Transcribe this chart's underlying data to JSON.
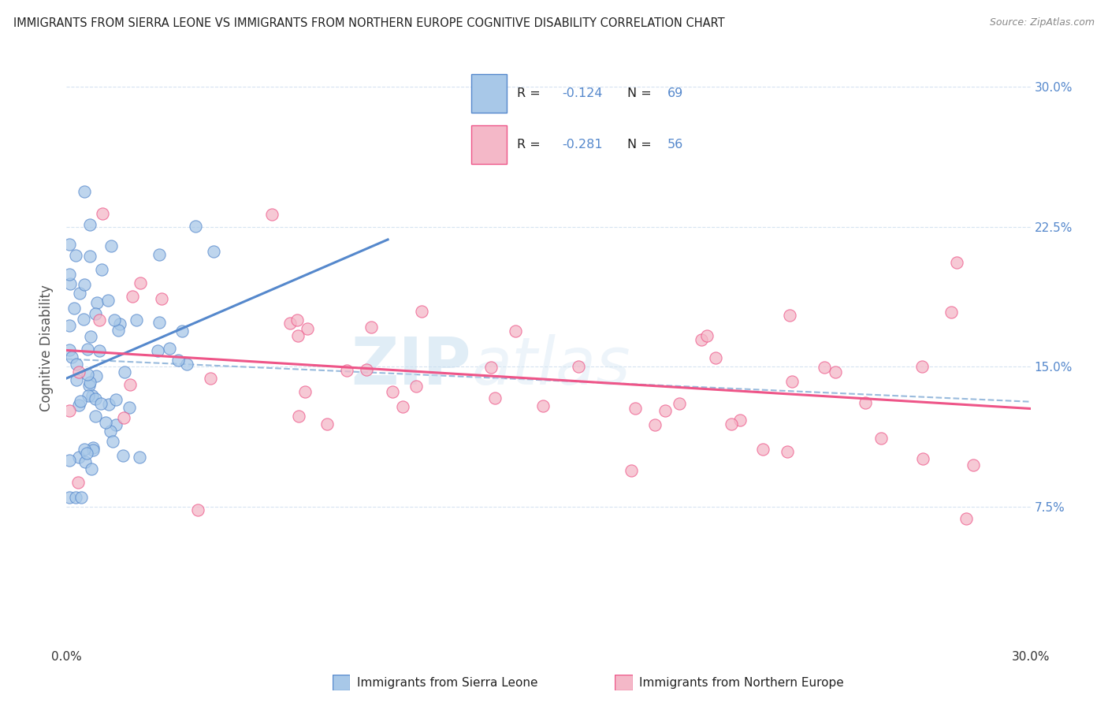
{
  "title": "IMMIGRANTS FROM SIERRA LEONE VS IMMIGRANTS FROM NORTHERN EUROPE COGNITIVE DISABILITY CORRELATION CHART",
  "source": "Source: ZipAtlas.com",
  "ylabel": "Cognitive Disability",
  "y_tick_labels": [
    "7.5%",
    "15.0%",
    "22.5%",
    "30.0%"
  ],
  "xlim": [
    0.0,
    0.3
  ],
  "ylim": [
    0.0,
    0.32
  ],
  "legend_label1": "Immigrants from Sierra Leone",
  "legend_label2": "Immigrants from Northern Europe",
  "R1": -0.124,
  "N1": 69,
  "R2": -0.281,
  "N2": 56,
  "color_blue": "#a8c8e8",
  "color_pink": "#f4b8c8",
  "color_blue_line": "#5588cc",
  "color_pink_line": "#ee5588",
  "color_dashed": "#99bbdd",
  "watermark_zip": "ZIP",
  "watermark_atlas": "atlas"
}
